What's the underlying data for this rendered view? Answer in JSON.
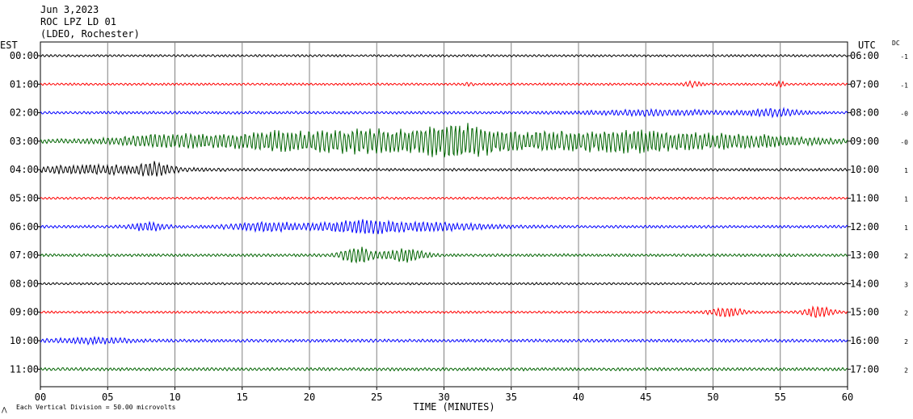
{
  "header": {
    "date": "Jun 3,2023",
    "station": "ROC LPZ LD 01",
    "network": "(LDEO, Rochester)"
  },
  "axes": {
    "left_zone": "EST",
    "right_zone": "UTC",
    "dc_header": "DC",
    "xlabel": "TIME (MINUTES)",
    "x_ticks": [
      "00",
      "05",
      "10",
      "15",
      "20",
      "25",
      "30",
      "35",
      "40",
      "45",
      "50",
      "55",
      "60"
    ]
  },
  "footer": {
    "scale_note": "Each Vertical Division =   50.00 microvolts"
  },
  "colors": {
    "black": "#000000",
    "red": "#ff0000",
    "blue": "#0000ff",
    "green": "#006400",
    "grid": "#808080"
  },
  "chart_data": {
    "type": "line",
    "title": "",
    "xlabel": "TIME (MINUTES)",
    "ylabel": "",
    "xlim": [
      0,
      60
    ],
    "grid": true,
    "rows": [
      {
        "est": "00:00",
        "utc": "06:00",
        "dc": "-1",
        "color": "black",
        "amp": 1.5,
        "bursts": []
      },
      {
        "est": "01:00",
        "utc": "07:00",
        "dc": "-1",
        "color": "red",
        "amp": 1.5,
        "bursts": [
          [
            31.8,
            0.3,
            3
          ],
          [
            48.5,
            0.6,
            3
          ],
          [
            55.0,
            0.4,
            3
          ]
        ]
      },
      {
        "est": "02:00",
        "utc": "08:00",
        "dc": "-0",
        "color": "blue",
        "amp": 1.8,
        "bursts": [
          [
            46,
            5,
            3
          ],
          [
            54.5,
            2,
            4
          ]
        ]
      },
      {
        "est": "03:00",
        "utc": "09:00",
        "dc": "-0",
        "color": "green",
        "amp": 3,
        "bursts": [
          [
            10,
            4,
            8
          ],
          [
            17,
            3,
            9
          ],
          [
            24,
            5,
            14
          ],
          [
            31,
            3,
            18
          ],
          [
            38,
            6,
            10
          ],
          [
            45,
            4,
            9
          ],
          [
            52,
            5,
            7
          ]
        ]
      },
      {
        "est": "04:00",
        "utc": "10:00",
        "dc": "1",
        "color": "black",
        "amp": 1.8,
        "bursts": [
          [
            4,
            6,
            5
          ],
          [
            8.5,
            1,
            7
          ]
        ]
      },
      {
        "est": "05:00",
        "utc": "11:00",
        "dc": "1",
        "color": "red",
        "amp": 1.5,
        "bursts": []
      },
      {
        "est": "06:00",
        "utc": "12:00",
        "dc": "1",
        "color": "blue",
        "amp": 1.8,
        "bursts": [
          [
            8,
            1.2,
            6
          ],
          [
            17,
            3,
            5
          ],
          [
            24,
            3,
            8
          ],
          [
            30,
            4,
            4
          ]
        ]
      },
      {
        "est": "07:00",
        "utc": "13:00",
        "dc": "2",
        "color": "green",
        "amp": 1.8,
        "bursts": [
          [
            23.5,
            1.2,
            10
          ],
          [
            27,
            1.5,
            9
          ]
        ]
      },
      {
        "est": "08:00",
        "utc": "14:00",
        "dc": "3",
        "color": "black",
        "amp": 1.5,
        "bursts": []
      },
      {
        "est": "09:00",
        "utc": "15:00",
        "dc": "2",
        "color": "red",
        "amp": 1.5,
        "bursts": [
          [
            51,
            1.2,
            6
          ],
          [
            57.8,
            1.1,
            7
          ]
        ]
      },
      {
        "est": "10:00",
        "utc": "16:00",
        "dc": "2",
        "color": "blue",
        "amp": 2,
        "bursts": [
          [
            4,
            3,
            3
          ]
        ]
      },
      {
        "est": "11:00",
        "utc": "17:00",
        "dc": "2",
        "color": "green",
        "amp": 2,
        "bursts": []
      }
    ]
  }
}
